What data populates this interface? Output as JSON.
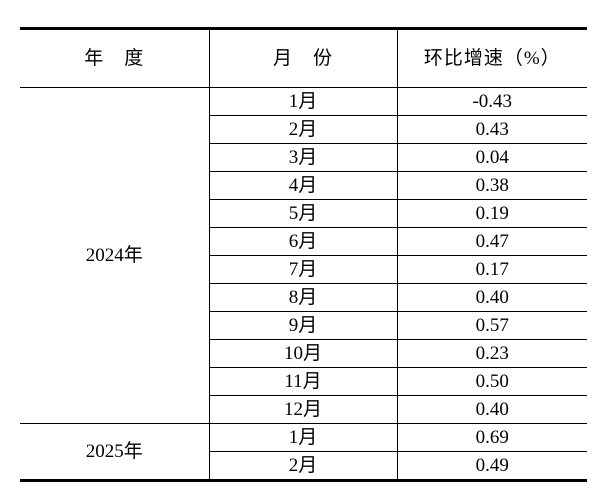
{
  "table": {
    "headers": {
      "year": "年　度",
      "month": "月　份",
      "rate": "环比增速（%）"
    },
    "groups": [
      {
        "year": "2024年",
        "rows": [
          {
            "month": "1月",
            "rate": "-0.43"
          },
          {
            "month": "2月",
            "rate": "0.43"
          },
          {
            "month": "3月",
            "rate": "0.04"
          },
          {
            "month": "4月",
            "rate": "0.38"
          },
          {
            "month": "5月",
            "rate": "0.19"
          },
          {
            "month": "6月",
            "rate": "0.47"
          },
          {
            "month": "7月",
            "rate": "0.17"
          },
          {
            "month": "8月",
            "rate": "0.40"
          },
          {
            "month": "9月",
            "rate": "0.57"
          },
          {
            "month": "10月",
            "rate": "0.23"
          },
          {
            "month": "11月",
            "rate": "0.50"
          },
          {
            "month": "12月",
            "rate": "0.40"
          }
        ]
      },
      {
        "year": "2025年",
        "rows": [
          {
            "month": "1月",
            "rate": "0.69"
          },
          {
            "month": "2月",
            "rate": "0.49"
          }
        ]
      }
    ]
  },
  "colors": {
    "border": "#000000",
    "text": "#000000",
    "background": "#ffffff"
  }
}
